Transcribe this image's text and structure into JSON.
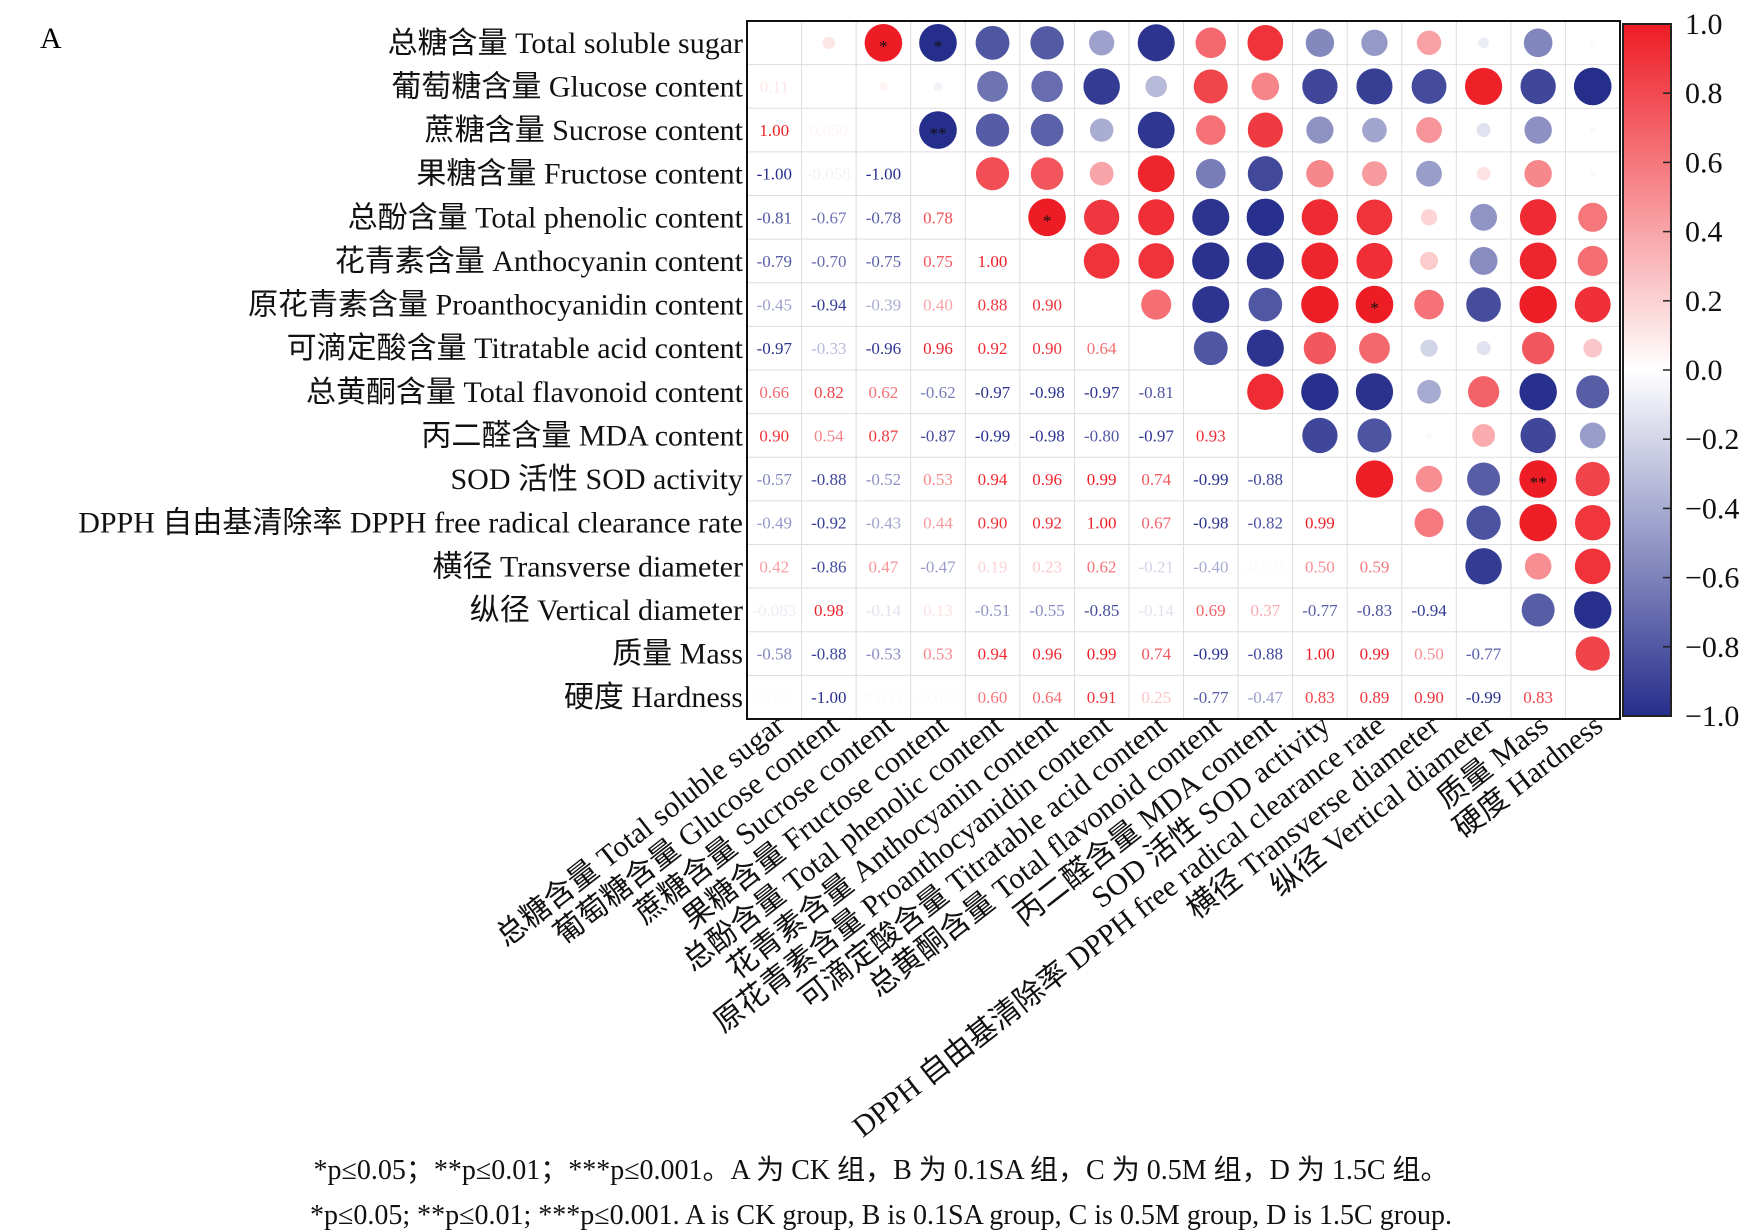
{
  "chart_data": {
    "type": "heatmap",
    "panel_label": "A",
    "variables": [
      "总糖含量 Total soluble sugar",
      "葡萄糖含量 Glucose content",
      "蔗糖含量 Sucrose content",
      "果糖含量 Fructose content",
      "总酚含量 Total phenolic content",
      "花青素含量 Anthocyanin content",
      "原花青素含量 Proanthocyanidin content",
      "可滴定酸含量 Titratable acid content",
      "总黄酮含量 Total flavonoid content",
      "丙二醛含量 MDA content",
      "SOD 活性 SOD activity",
      "DPPH 自由基清除率 DPPH free radical clearance rate",
      "横径 Transverse diameter",
      "纵径 Vertical diameter",
      "质量 Mass",
      "硬度 Hardness"
    ],
    "lower_labels": [
      [],
      [
        "0.11"
      ],
      [
        "1.00",
        "0.050"
      ],
      [
        "-1.00",
        "-0.058",
        "-1.00"
      ],
      [
        "-0.81",
        "-0.67",
        "-0.78",
        "0.78"
      ],
      [
        "-0.79",
        "-0.70",
        "-0.75",
        "0.75",
        "1.00"
      ],
      [
        "-0.45",
        "-0.94",
        "-0.39",
        "0.40",
        "0.88",
        "0.90"
      ],
      [
        "-0.97",
        "-0.33",
        "-0.96",
        "0.96",
        "0.92",
        "0.90",
        "0.64"
      ],
      [
        "0.66",
        "0.82",
        "0.62",
        "-0.62",
        "-0.97",
        "-0.98",
        "-0.97",
        "-0.81"
      ],
      [
        "0.90",
        "0.54",
        "0.87",
        "-0.87",
        "-0.99",
        "-0.98",
        "-0.80",
        "-0.97",
        "0.93"
      ],
      [
        "-0.57",
        "-0.88",
        "-0.52",
        "0.53",
        "0.94",
        "0.96",
        "0.99",
        "0.74",
        "-0.99",
        "-0.88"
      ],
      [
        "-0.49",
        "-0.92",
        "-0.43",
        "0.44",
        "0.90",
        "0.92",
        "1.00",
        "0.67",
        "-0.98",
        "-0.82",
        "0.99"
      ],
      [
        "0.42",
        "-0.86",
        "0.47",
        "-0.47",
        "0.19",
        "0.23",
        "0.62",
        "-0.21",
        "-0.40",
        "-0.025",
        "0.50",
        "0.59"
      ],
      [
        "-0.083",
        "0.98",
        "-0.14",
        "0.13",
        "-0.51",
        "-0.55",
        "-0.85",
        "-0.14",
        "0.69",
        "0.37",
        "-0.77",
        "-0.83",
        "-0.94"
      ],
      [
        "-0.58",
        "-0.88",
        "-0.53",
        "0.53",
        "0.94",
        "0.96",
        "0.99",
        "0.74",
        "-0.99",
        "-0.88",
        "1.00",
        "0.99",
        "0.50",
        "-0.77"
      ],
      [
        "0.026",
        "-1.00",
        "0.033",
        "-0.024",
        "0.60",
        "0.64",
        "0.91",
        "0.25",
        "-0.77",
        "-0.47",
        "0.83",
        "0.89",
        "0.90",
        "-0.99",
        "0.83"
      ]
    ],
    "significance": [
      {
        "row": 0,
        "col": 2,
        "mark": "*"
      },
      {
        "row": 0,
        "col": 3,
        "mark": "*"
      },
      {
        "row": 2,
        "col": 3,
        "mark": "**"
      },
      {
        "row": 4,
        "col": 5,
        "mark": "*"
      },
      {
        "row": 6,
        "col": 11,
        "mark": "*"
      },
      {
        "row": 10,
        "col": 14,
        "mark": "**"
      }
    ],
    "colorbar": {
      "ticks": [
        "1.0",
        "0.8",
        "0.6",
        "0.4",
        "0.2",
        "0.0",
        "−0.2",
        "−0.4",
        "−0.6",
        "−0.8",
        "−1.0"
      ],
      "range": [
        -1,
        1
      ],
      "high_color": "#ee1c25",
      "mid_color": "#ffffff",
      "low_color": "#262e8c"
    }
  },
  "notes": {
    "cn": "*p≤0.05；**p≤0.01；***p≤0.001。A 为 CK 组，B 为 0.1SA 组，C 为 0.5M 组，D 为 1.5C 组。",
    "en": "*p≤0.05; **p≤0.01; ***p≤0.001. A is CK group, B is 0.1SA group, C is 0.5M group, D is 1.5C group."
  }
}
